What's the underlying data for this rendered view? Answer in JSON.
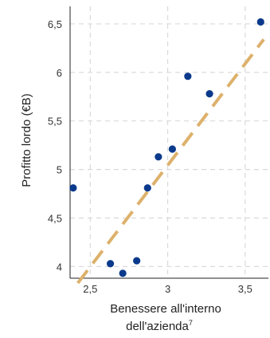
{
  "chart_data": {
    "type": "scatter",
    "title": "",
    "xlabel_line1": "Benessere all'interno",
    "xlabel_line2": "dell'azienda",
    "xlabel_footnote": "7",
    "ylabel": "Profitto lordo (€B)",
    "xlim": [
      2.37,
      3.65
    ],
    "ylim": [
      3.88,
      6.68
    ],
    "x_ticks": [
      2.5,
      3,
      3.5
    ],
    "x_tick_labels": [
      "2,5",
      "3",
      "3,5"
    ],
    "y_ticks": [
      4,
      4.5,
      5,
      5.5,
      6,
      6.5
    ],
    "y_tick_labels": [
      "4",
      "4,5",
      "5",
      "5,5",
      "6",
      "6,5"
    ],
    "grid": true,
    "points": [
      {
        "x": 2.39,
        "y": 4.81
      },
      {
        "x": 2.63,
        "y": 4.03
      },
      {
        "x": 2.71,
        "y": 3.93
      },
      {
        "x": 2.8,
        "y": 4.06
      },
      {
        "x": 2.87,
        "y": 4.81
      },
      {
        "x": 2.94,
        "y": 5.13
      },
      {
        "x": 3.03,
        "y": 5.21
      },
      {
        "x": 3.13,
        "y": 5.96
      },
      {
        "x": 3.27,
        "y": 5.78
      },
      {
        "x": 3.6,
        "y": 6.52
      }
    ],
    "trendline": {
      "x": [
        2.42,
        3.62
      ],
      "y": [
        3.83,
        6.34
      ]
    },
    "colors": {
      "points": "#0b3a8c",
      "trendline": "#ddb16b",
      "grid": "#d9d9d9",
      "axis": "#222222"
    }
  }
}
